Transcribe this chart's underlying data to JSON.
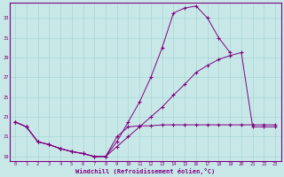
{
  "title": "Windchill (Refroidissement éolien,°C)",
  "bg_color": "#c8e8e8",
  "line_color": "#800080",
  "grid_color": "#a8d4d4",
  "xlim": [
    -0.5,
    23.5
  ],
  "ylim": [
    18.5,
    34.5
  ],
  "xticks": [
    0,
    1,
    2,
    3,
    4,
    5,
    6,
    7,
    8,
    9,
    10,
    11,
    12,
    13,
    14,
    15,
    16,
    17,
    18,
    19,
    20,
    21,
    22,
    23
  ],
  "yticks": [
    19,
    21,
    23,
    25,
    27,
    29,
    31,
    33
  ],
  "series1_x": [
    0,
    1,
    2,
    3,
    4,
    5,
    6,
    7,
    8,
    9,
    10,
    11,
    12,
    13,
    14,
    15,
    16,
    17,
    18,
    19
  ],
  "series1_y": [
    22.5,
    22.0,
    20.5,
    20.2,
    19.8,
    19.5,
    19.3,
    19.0,
    19.0,
    20.5,
    22.5,
    24.5,
    27.0,
    30.0,
    33.5,
    34.0,
    34.2,
    33.0,
    31.0,
    29.5
  ],
  "series2_x": [
    0,
    1,
    2,
    3,
    4,
    5,
    6,
    7,
    8,
    9,
    10,
    11,
    12,
    13,
    14,
    15,
    16,
    17,
    18,
    19,
    20,
    21,
    22,
    23
  ],
  "series2_y": [
    22.5,
    22.0,
    20.5,
    20.2,
    19.8,
    19.5,
    19.3,
    19.0,
    19.0,
    20.0,
    21.0,
    22.0,
    23.0,
    24.0,
    25.2,
    26.3,
    27.5,
    28.2,
    28.8,
    29.2,
    29.5,
    22.0,
    22.0,
    22.0
  ],
  "series3_x": [
    0,
    1,
    2,
    3,
    4,
    5,
    6,
    7,
    8,
    9,
    10,
    11,
    12,
    13,
    14,
    15,
    16,
    17,
    18,
    19,
    20,
    21,
    22,
    23
  ],
  "series3_y": [
    22.5,
    22.0,
    20.5,
    20.2,
    19.8,
    19.5,
    19.3,
    19.0,
    19.0,
    21.0,
    22.0,
    22.1,
    22.1,
    22.2,
    22.2,
    22.2,
    22.2,
    22.2,
    22.2,
    22.2,
    22.2,
    22.2,
    22.2,
    22.2
  ]
}
